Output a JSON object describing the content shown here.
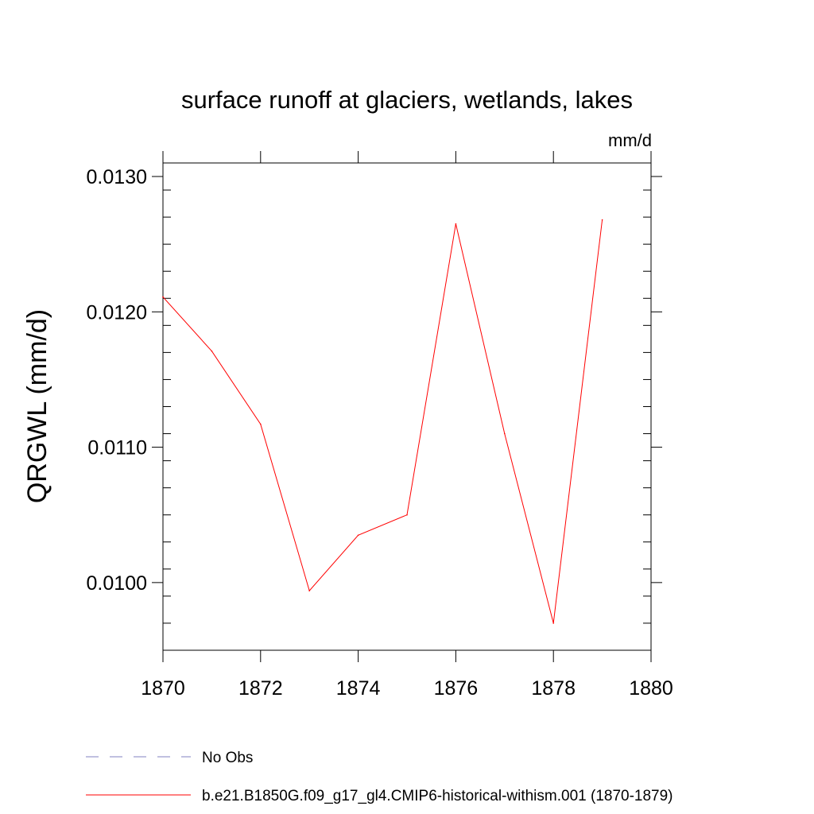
{
  "chart_data": {
    "type": "line",
    "title": "surface runoff at glaciers, wetlands, lakes",
    "units_label": "mm/d",
    "ylabel": "QRGWL  (mm/d)",
    "xlabel": "",
    "xlim": [
      1870,
      1880
    ],
    "ylim": [
      0.0095,
      0.0131
    ],
    "x_ticks": [
      1870,
      1872,
      1874,
      1876,
      1878,
      1880
    ],
    "x_tick_labels": [
      "1870",
      "1872",
      "1874",
      "1876",
      "1878",
      "1880"
    ],
    "y_ticks": [
      0.01,
      0.011,
      0.012,
      0.013
    ],
    "y_tick_labels": [
      "0.0100",
      "0.0110",
      "0.0120",
      "0.0130"
    ],
    "y_minor_step": 0.0002,
    "grid": false,
    "legend_position": "bottom",
    "series": [
      {
        "name": "b.e21.B1850G.f09_g17_gl4.CMIP6-historical-withism.001 (1870-1879)",
        "color": "#ff0000",
        "style": "solid",
        "x": [
          1870,
          1871,
          1872,
          1873,
          1874,
          1875,
          1876,
          1877,
          1878,
          1879
        ],
        "values": [
          0.01211,
          0.01171,
          0.01117,
          0.00994,
          0.01035,
          0.0105,
          0.01265,
          0.0111,
          0.0097,
          0.01268
        ]
      }
    ],
    "legend": [
      {
        "label": "No Obs",
        "color": "#8080c0",
        "style": "dashed"
      },
      {
        "label": "b.e21.B1850G.f09_g17_gl4.CMIP6-historical-withism.001 (1870-1879)",
        "color": "#ff0000",
        "style": "solid"
      }
    ]
  }
}
